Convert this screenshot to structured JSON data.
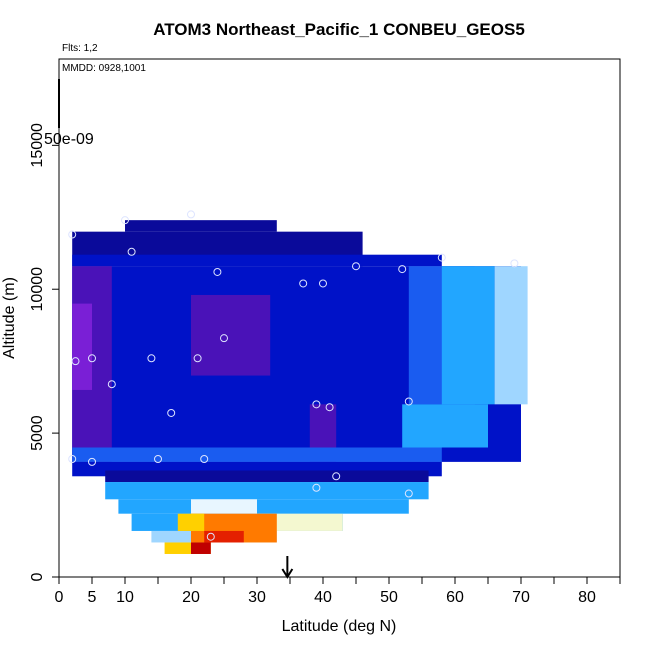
{
  "chart_data": {
    "type": "heatmap",
    "title": "ATOM3 Northeast_Pacific_1 CONBEU_GEOS5",
    "annotations": {
      "flights": "Flts: 1,2",
      "dates": "MMDD: 0928,1001",
      "scale_label": "50e-09"
    },
    "xlabel": "Latitude (deg N)",
    "ylabel": "Altitude (m)",
    "xlim": [
      0,
      85
    ],
    "ylim": [
      0,
      18000
    ],
    "x_ticks": [
      0,
      5,
      10,
      20,
      30,
      40,
      50,
      60,
      70,
      80
    ],
    "x_minor_ticks": [
      15,
      25,
      35,
      45,
      55,
      65,
      75,
      85
    ],
    "y_ticks": [
      0,
      5000,
      10000,
      15000
    ],
    "grid": false,
    "arrow_latitude": 34.6,
    "colors": {
      "deep_purple": "#7a1fd6",
      "purple": "#4a12b8",
      "navy": "#0a0a9a",
      "blue": "#0012c8",
      "mid_blue": "#1a5cf0",
      "sky_blue": "#22a6ff",
      "light_blue": "#9fd6ff",
      "pale": "#e8f6ff",
      "cream": "#f4f8d0",
      "yellow": "#ffd000",
      "orange": "#ff7a00",
      "red": "#e42000",
      "dark_red": "#c00000",
      "marker": "#dde4ff"
    },
    "cells": [
      {
        "lat": [
          10,
          33
        ],
        "alt": [
          12000,
          12400
        ],
        "color": "navy"
      },
      {
        "lat": [
          2,
          46
        ],
        "alt": [
          10800,
          12000
        ],
        "color": "navy"
      },
      {
        "lat": [
          2,
          58
        ],
        "alt": [
          10800,
          11200
        ],
        "color": "blue"
      },
      {
        "lat": [
          2,
          70
        ],
        "alt": [
          4000,
          10800
        ],
        "color": "blue"
      },
      {
        "lat": [
          2,
          8
        ],
        "alt": [
          4000,
          10800
        ],
        "color": "purple"
      },
      {
        "lat": [
          2,
          5
        ],
        "alt": [
          6500,
          9500
        ],
        "color": "deep_purple"
      },
      {
        "lat": [
          20,
          32
        ],
        "alt": [
          7000,
          9800
        ],
        "color": "purple"
      },
      {
        "lat": [
          38,
          42
        ],
        "alt": [
          3500,
          6000
        ],
        "color": "purple"
      },
      {
        "lat": [
          53,
          63
        ],
        "alt": [
          6000,
          10800
        ],
        "color": "mid_blue"
      },
      {
        "lat": [
          58,
          66
        ],
        "alt": [
          6000,
          10800
        ],
        "color": "sky_blue"
      },
      {
        "lat": [
          66,
          71
        ],
        "alt": [
          6000,
          10800
        ],
        "color": "light_blue"
      },
      {
        "lat": [
          52,
          65
        ],
        "alt": [
          4500,
          6000
        ],
        "color": "sky_blue"
      },
      {
        "lat": [
          2,
          58
        ],
        "alt": [
          3500,
          4000
        ],
        "color": "blue"
      },
      {
        "lat": [
          2,
          58
        ],
        "alt": [
          4000,
          4500
        ],
        "color": "mid_blue"
      },
      {
        "lat": [
          7,
          56
        ],
        "alt": [
          3300,
          3700
        ],
        "color": "navy"
      },
      {
        "lat": [
          7,
          56
        ],
        "alt": [
          2700,
          3300
        ],
        "color": "sky_blue"
      },
      {
        "lat": [
          9,
          53
        ],
        "alt": [
          2200,
          2700
        ],
        "color": "sky_blue"
      },
      {
        "lat": [
          11,
          43
        ],
        "alt": [
          1600,
          2200
        ],
        "color": "sky_blue"
      },
      {
        "lat": [
          20,
          30
        ],
        "alt": [
          2200,
          2700
        ],
        "color": "pale"
      },
      {
        "lat": [
          30,
          43
        ],
        "alt": [
          1600,
          2200
        ],
        "color": "cream"
      },
      {
        "lat": [
          14,
          33
        ],
        "alt": [
          1200,
          1600
        ],
        "color": "light_blue"
      },
      {
        "lat": [
          20,
          33
        ],
        "alt": [
          1200,
          2200
        ],
        "color": "orange"
      },
      {
        "lat": [
          18,
          22
        ],
        "alt": [
          1600,
          2200
        ],
        "color": "yellow"
      },
      {
        "lat": [
          22,
          28
        ],
        "alt": [
          1200,
          1600
        ],
        "color": "red"
      },
      {
        "lat": [
          16,
          23
        ],
        "alt": [
          800,
          1200
        ],
        "color": "yellow"
      },
      {
        "lat": [
          20,
          23
        ],
        "alt": [
          800,
          1200
        ],
        "color": "dark_red"
      }
    ],
    "points": [
      [
        2,
        11900
      ],
      [
        10,
        12400
      ],
      [
        20,
        12600
      ],
      [
        11,
        11300
      ],
      [
        24,
        10600
      ],
      [
        37,
        10200
      ],
      [
        40,
        10200
      ],
      [
        45,
        10800
      ],
      [
        52,
        10700
      ],
      [
        58,
        11100
      ],
      [
        69,
        10900
      ],
      [
        25,
        8300
      ],
      [
        5,
        7600
      ],
      [
        2.5,
        7500
      ],
      [
        14,
        7600
      ],
      [
        21,
        7600
      ],
      [
        8,
        6700
      ],
      [
        17,
        5700
      ],
      [
        39,
        6000
      ],
      [
        41,
        5900
      ],
      [
        53,
        6100
      ],
      [
        2,
        4100
      ],
      [
        5,
        4000
      ],
      [
        15,
        4100
      ],
      [
        22,
        4100
      ],
      [
        42,
        3500
      ],
      [
        39,
        3100
      ],
      [
        53,
        2900
      ],
      [
        23,
        1400
      ]
    ]
  }
}
